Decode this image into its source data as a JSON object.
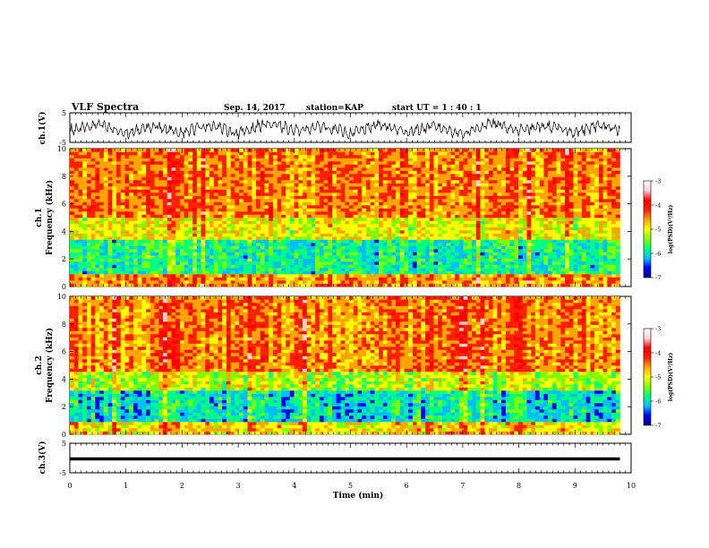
{
  "header": {
    "title": "VLF Spectra",
    "date": "Sep. 14, 2017",
    "station": "station=KAP",
    "start_ut": "start  UT =  1 : 40 : 1"
  },
  "colormap": [
    "#000080",
    "#0000ff",
    "#00bfff",
    "#00ff80",
    "#7fff00",
    "#ffff00",
    "#ffa500",
    "#ff2000",
    "#ff0000",
    "#ffd0d0",
    "#ffffff"
  ],
  "chart_data": [
    {
      "type": "line",
      "panel": "ch1-waveform",
      "ylabel": "ch.1(V)",
      "ylim": [
        -5,
        5
      ],
      "yticks": [
        "5",
        "-5"
      ],
      "xlim": [
        0,
        10
      ],
      "description_values": {
        "x": [
          0,
          0.5,
          1,
          1.5,
          2,
          2.5,
          3,
          3.5,
          4,
          4.5,
          5,
          5.5,
          6,
          6.5,
          7,
          7.5,
          8,
          8.5,
          9,
          9.5,
          9.8
        ],
        "y": [
          -1,
          1,
          -2,
          0.5,
          -1.5,
          1,
          -2,
          1.5,
          -1,
          0.5,
          -2,
          1,
          -1.5,
          0.5,
          -2,
          1.5,
          -1,
          0.5,
          -1.5,
          1,
          -1
        ]
      }
    },
    {
      "type": "heatmap",
      "panel": "ch1-spectrogram",
      "ylabel": "ch.1",
      "ylabel2": "Frequency (kHz)",
      "xlim": [
        0,
        9.8
      ],
      "ylim": [
        0,
        10
      ],
      "yticks": [
        "0",
        "2",
        "4",
        "6",
        "8",
        "10"
      ],
      "colorbar": {
        "label": "log(PSD)(V²/Hz)",
        "ticks": [
          "-3",
          "-4",
          "-5",
          "-6",
          "-7"
        ],
        "range": [
          -7,
          -3
        ]
      },
      "bands": [
        {
          "f": [
            0.0,
            1.0
          ],
          "level": -4.3
        },
        {
          "f": [
            1.0,
            3.5
          ],
          "level": -5.7
        },
        {
          "f": [
            3.5,
            5.0
          ],
          "level": -4.8
        },
        {
          "f": [
            5.0,
            10.0
          ],
          "level": -4.2
        }
      ]
    },
    {
      "type": "heatmap",
      "panel": "ch2-spectrogram",
      "ylabel": "ch.2",
      "ylabel2": "Frequency (kHz)",
      "xlim": [
        0,
        9.8
      ],
      "ylim": [
        0,
        10
      ],
      "yticks": [
        "0",
        "2",
        "4",
        "6",
        "8",
        "10"
      ],
      "colorbar": {
        "label": "log(PSD)(V²/Hz)",
        "ticks": [
          "-3",
          "-4",
          "-5",
          "-6",
          "-7"
        ],
        "range": [
          -7,
          -3
        ]
      },
      "bands": [
        {
          "f": [
            0.0,
            1.0
          ],
          "level": -4.6
        },
        {
          "f": [
            1.0,
            3.2
          ],
          "level": -5.9
        },
        {
          "f": [
            3.2,
            4.5
          ],
          "level": -5.0
        },
        {
          "f": [
            4.5,
            10.0
          ],
          "level": -4.2
        }
      ]
    },
    {
      "type": "line",
      "panel": "ch3-waveform",
      "ylabel": "ch.3(V)",
      "ylim": [
        -5,
        5
      ],
      "yticks": [
        "5",
        "-5"
      ],
      "xlim": [
        0,
        10
      ],
      "x": [
        0,
        9.8
      ],
      "y": [
        0,
        0
      ]
    }
  ],
  "xaxis": {
    "label": "Time (min)",
    "ticks": [
      "0",
      "1",
      "2",
      "3",
      "4",
      "5",
      "6",
      "7",
      "8",
      "9",
      "10"
    ]
  }
}
